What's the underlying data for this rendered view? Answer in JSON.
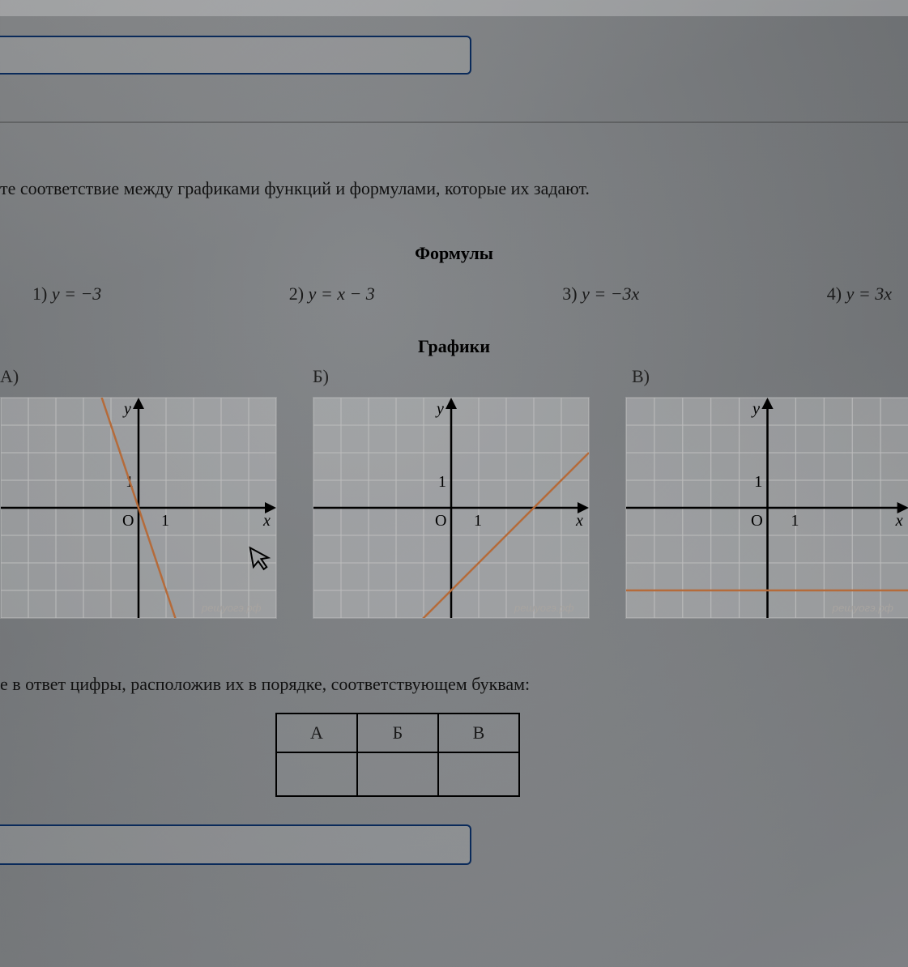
{
  "question_text": "те соответствие между графиками функций и формулами, которые их задают.",
  "headings": {
    "formulas": "Формулы",
    "graphs": "Графики"
  },
  "formulas": {
    "f1": {
      "num": "1)",
      "expr": "y = −3"
    },
    "f2": {
      "num": "2)",
      "expr": "y = x − 3"
    },
    "f3": {
      "num": "3)",
      "expr": "y = −3x"
    },
    "f4": {
      "num": "4)",
      "expr": "y = 3x"
    }
  },
  "graph_labels": {
    "A": "А)",
    "B": "Б)",
    "V": "В)"
  },
  "axes": {
    "x": "x",
    "y": "y",
    "O": "O",
    "one": "1"
  },
  "watermark": "решуогэ.рф",
  "grid": {
    "cell": 34,
    "rows": 8,
    "cols": 10,
    "origin_col": 5,
    "origin_row": 4,
    "grid_color": "#bdbdbd",
    "axis_color": "#000000",
    "line_color": "#b56b3a",
    "bg_color": "rgba(255,255,255,0.25)"
  },
  "graphs": {
    "A": {
      "type": "line",
      "slope": -3,
      "intercept": 0
    },
    "B": {
      "type": "line",
      "slope": 1,
      "intercept": -3
    },
    "V": {
      "type": "line",
      "slope": 0,
      "intercept": -3
    }
  },
  "answer_prompt": "е в ответ цифры, расположив их в порядке, соответствующем буквам:",
  "answer_table": {
    "headers": [
      "А",
      "Б",
      "В"
    ],
    "values": [
      "",
      "",
      ""
    ]
  }
}
